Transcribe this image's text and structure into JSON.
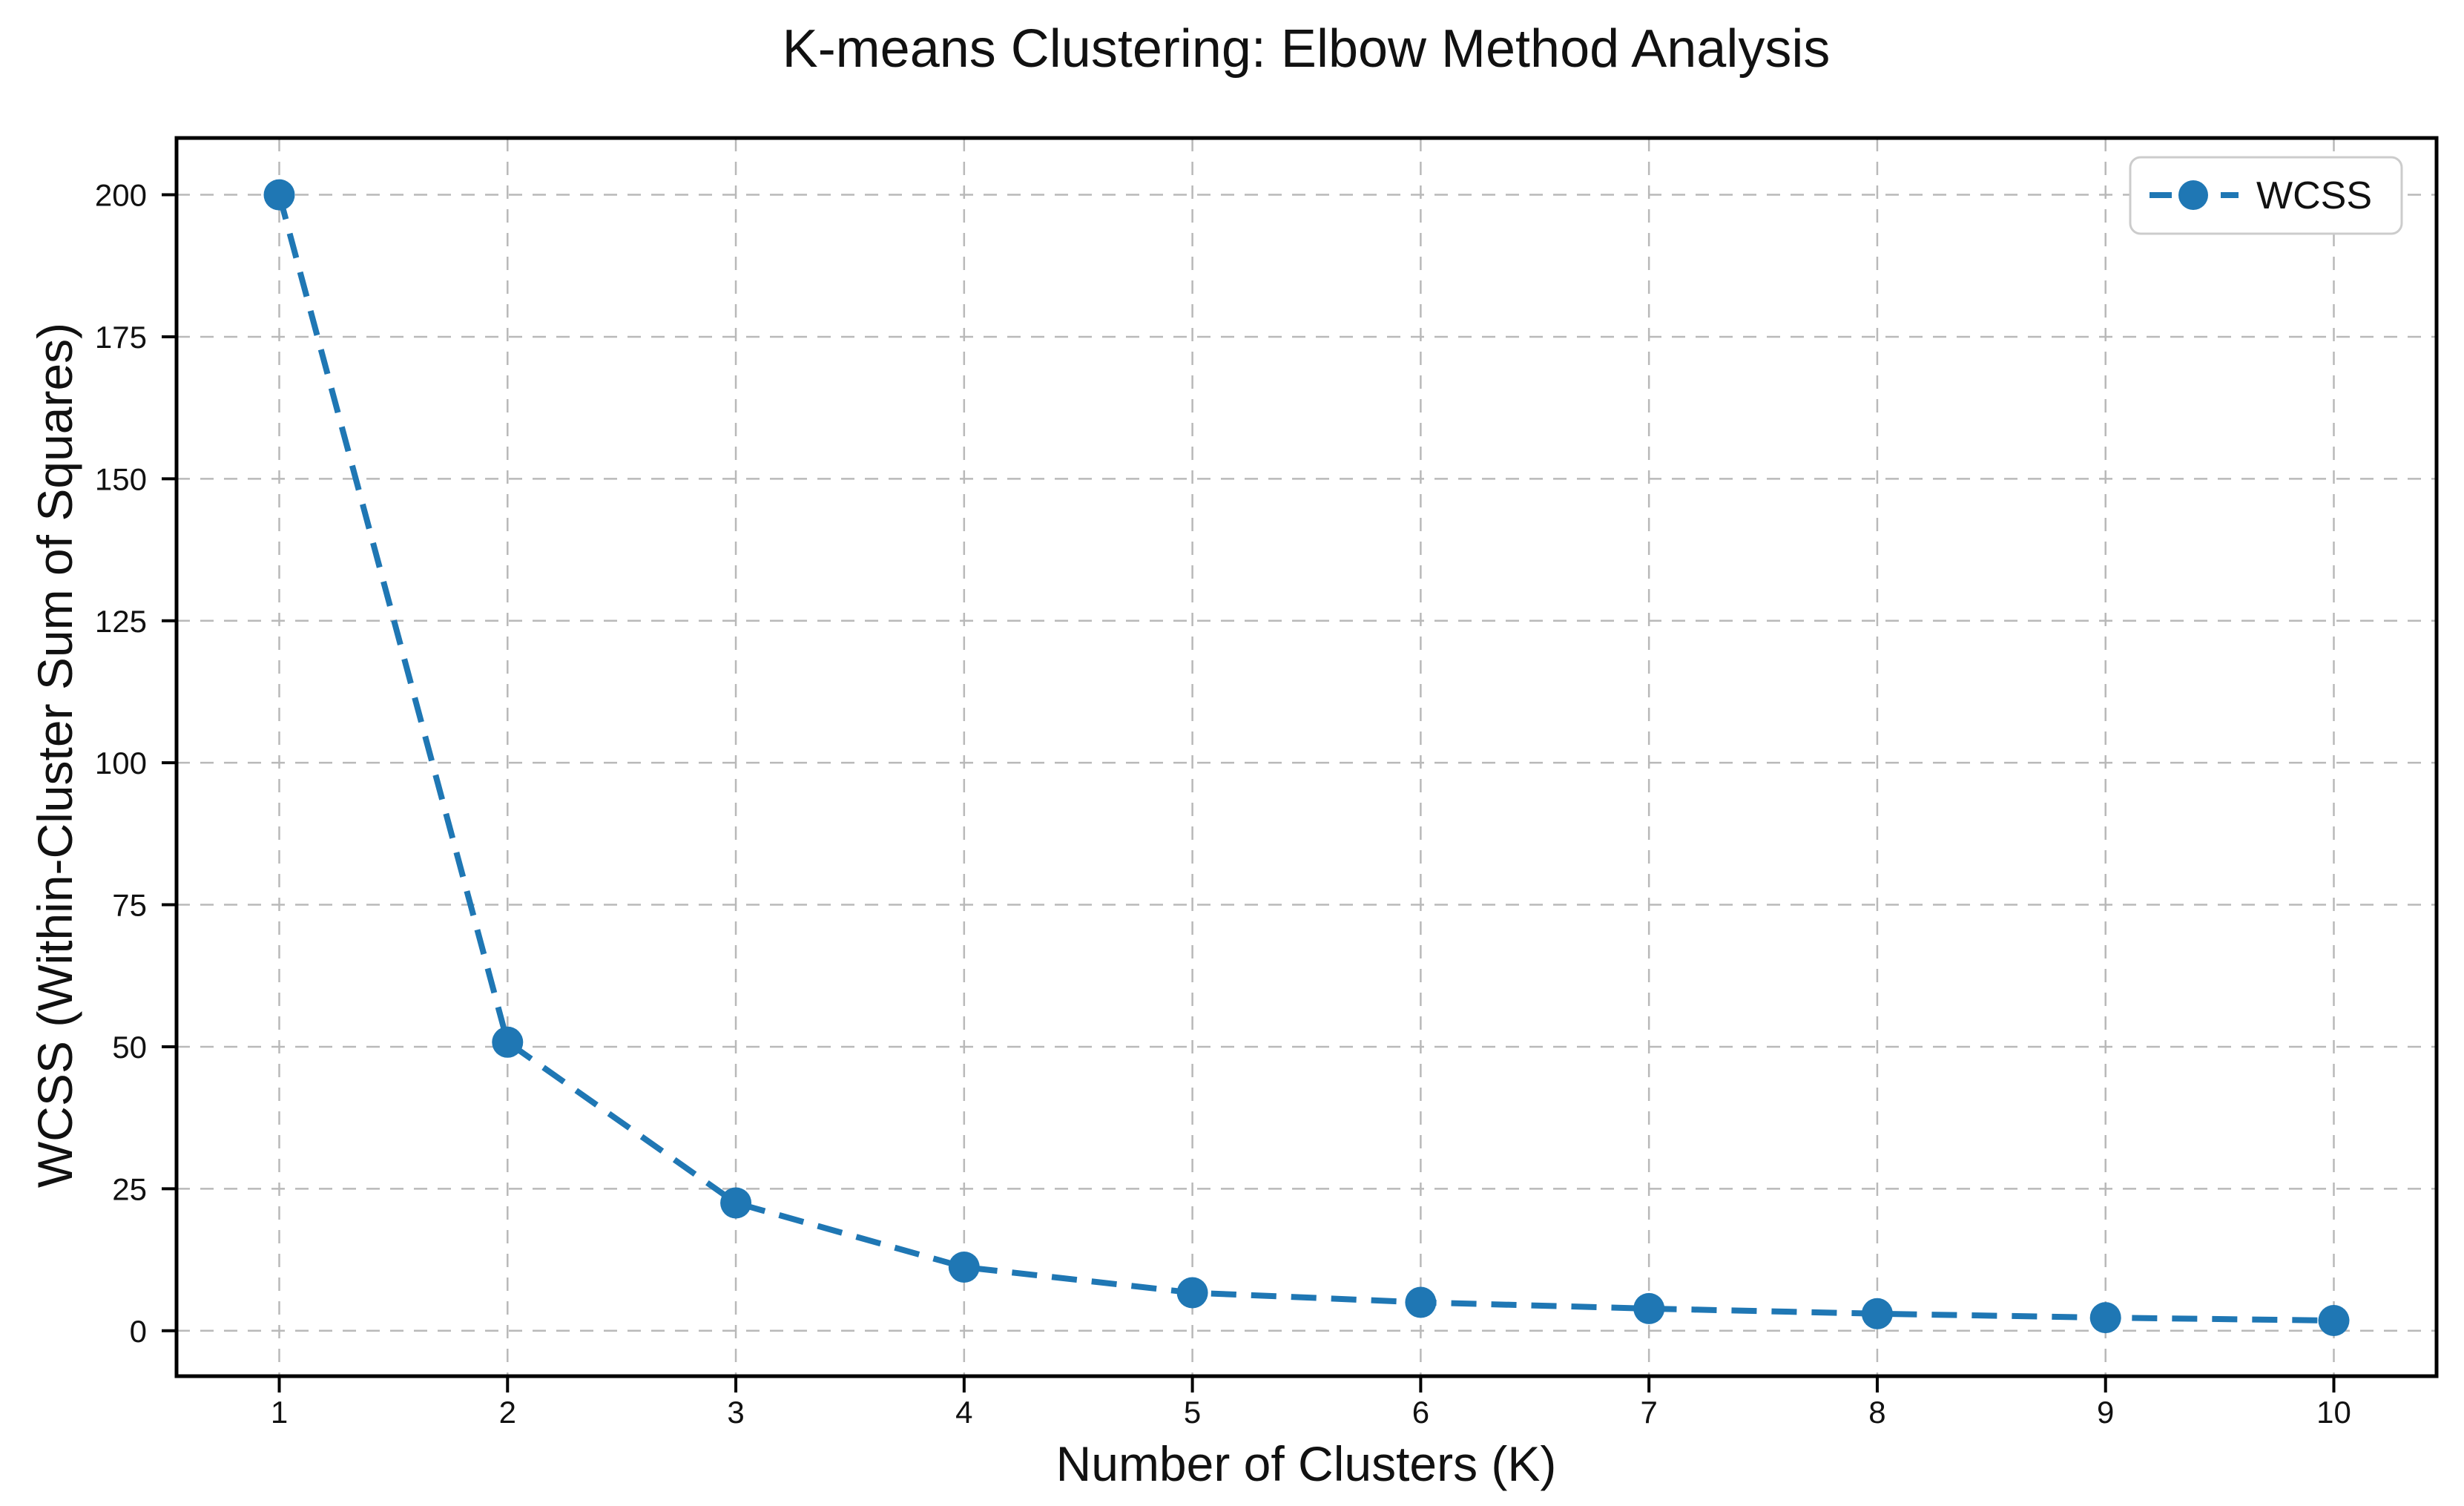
{
  "title": "K-means Clustering: Elbow Method Analysis",
  "chart_data": {
    "type": "line",
    "title": "K-means Clustering: Elbow Method Analysis",
    "xlabel": "Number of Clusters (K)",
    "ylabel": "WCSS (Within-Cluster Sum of Squares)",
    "x": [
      1,
      2,
      3,
      4,
      5,
      6,
      7,
      8,
      9,
      10
    ],
    "series": [
      {
        "name": "WCSS",
        "values": [
          200,
          50.8,
          22.5,
          11.2,
          6.7,
          5.0,
          3.9,
          3.0,
          2.3,
          1.8
        ]
      }
    ],
    "x_ticks": [
      "1",
      "2",
      "3",
      "4",
      "5",
      "6",
      "7",
      "8",
      "9",
      "10"
    ],
    "y_ticks": [
      "0",
      "25",
      "50",
      "75",
      "100",
      "125",
      "150",
      "175",
      "200"
    ],
    "y_tick_values": [
      0,
      25,
      50,
      75,
      100,
      125,
      150,
      175,
      200
    ],
    "xlim": [
      0.55,
      10.45
    ],
    "ylim": [
      -8,
      210
    ],
    "grid": true,
    "grid_style": "dashed",
    "line_style": "dashed",
    "marker": "circle",
    "legend": {
      "position": "upper right",
      "entries": [
        "WCSS"
      ]
    },
    "colors": {
      "series": "#1f77b4",
      "grid": "#b9b9b9",
      "spine": "#000000",
      "text": "#111111",
      "legend_border": "#cccccc",
      "background": "#ffffff"
    }
  }
}
